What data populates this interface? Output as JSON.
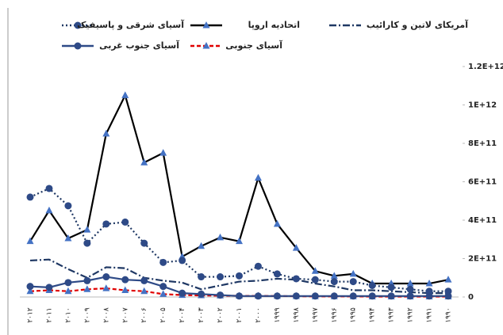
{
  "chart_data": {
    "type": "line",
    "categories": [
      "۲۰۱۲",
      "۲۰۱۱",
      "۲۰۱۰",
      "۲۰۰۹",
      "۲۰۰۸",
      "۲۰۰۷",
      "۲۰۰۶",
      "۲۰۰۵",
      "۲۰۰۴",
      "۲۰۰۳",
      "۲۰۰۲",
      "۲۰۰۱",
      "۲۰۰۰",
      "۱۹۹۹",
      "۱۹۹۸",
      "۱۹۹۷",
      "۱۹۹۶",
      "۱۹۹۵",
      "۱۹۹۴",
      "۱۹۹۳",
      "۱۹۹۲",
      "۱۹۹۱",
      "۱۹۹۰"
    ],
    "series": [
      {
        "name": "آمریکای لاتین و کارائیب",
        "color": "#1f3864",
        "dash": "9 3 2 3",
        "marker": "none",
        "marker_color": "#1f3864",
        "values": [
          190000000000,
          195000000000,
          145000000000,
          100000000000,
          155000000000,
          150000000000,
          100000000000,
          85000000000,
          75000000000,
          40000000000,
          60000000000,
          80000000000,
          85000000000,
          95000000000,
          90000000000,
          70000000000,
          55000000000,
          35000000000,
          35000000000,
          30000000000,
          25000000000,
          20000000000,
          20000000000
        ]
      },
      {
        "name": "اتحادیه اروپا",
        "color": "#000000",
        "dash": "none",
        "marker": "triangle",
        "marker_color": "#4472c4",
        "values": [
          290000000000,
          450000000000,
          305000000000,
          350000000000,
          850000000000,
          1050000000000,
          700000000000,
          750000000000,
          210000000000,
          265000000000,
          310000000000,
          290000000000,
          620000000000,
          380000000000,
          255000000000,
          135000000000,
          110000000000,
          120000000000,
          70000000000,
          70000000000,
          70000000000,
          70000000000,
          90000000000
        ]
      },
      {
        "name": "آسیای شرقی و پاسیفیک",
        "color": "#1f3864",
        "dash": "2 3",
        "marker": "circle",
        "marker_color": "#2e4a87",
        "values": [
          520000000000,
          565000000000,
          475000000000,
          280000000000,
          380000000000,
          390000000000,
          280000000000,
          180000000000,
          190000000000,
          105000000000,
          105000000000,
          110000000000,
          160000000000,
          120000000000,
          95000000000,
          90000000000,
          80000000000,
          80000000000,
          60000000000,
          50000000000,
          40000000000,
          30000000000,
          30000000000
        ]
      },
      {
        "name": "آسیای جنوبی",
        "color": "#e00000",
        "dash": "5 3",
        "marker": "triangle",
        "marker_color": "#4472c4",
        "values": [
          30000000000,
          35000000000,
          30000000000,
          40000000000,
          45000000000,
          35000000000,
          30000000000,
          15000000000,
          10000000000,
          8000000000,
          7000000000,
          6000000000,
          6000000000,
          5000000000,
          4000000000,
          3000000000,
          3000000000,
          3000000000,
          2000000000,
          2000000000,
          2000000000,
          2000000000,
          2000000000
        ]
      },
      {
        "name": "آسیای جنوب غربی",
        "color": "#2e4a87",
        "dash": "none",
        "marker": "circle",
        "marker_color": "#2e4a87",
        "values": [
          55000000000,
          50000000000,
          75000000000,
          85000000000,
          105000000000,
          90000000000,
          85000000000,
          55000000000,
          20000000000,
          15000000000,
          10000000000,
          5000000000,
          5000000000,
          5000000000,
          5000000000,
          5000000000,
          5000000000,
          5000000000,
          5000000000,
          5000000000,
          5000000000,
          5000000000,
          5000000000
        ]
      }
    ],
    "ylim": [
      0,
      1200000000000
    ],
    "yticks": [
      0,
      {
        "value": 200000000000,
        "label": "2E+11"
      },
      {
        "value": 400000000000,
        "label": "4E+11"
      },
      {
        "value": 600000000000,
        "label": "6E+11"
      },
      {
        "value": 800000000000,
        "label": "8E+11"
      },
      {
        "value": 1000000000000,
        "label": "1E+12"
      },
      {
        "value": 1200000000000,
        "label": "1.2E+12"
      }
    ],
    "grid": false
  }
}
